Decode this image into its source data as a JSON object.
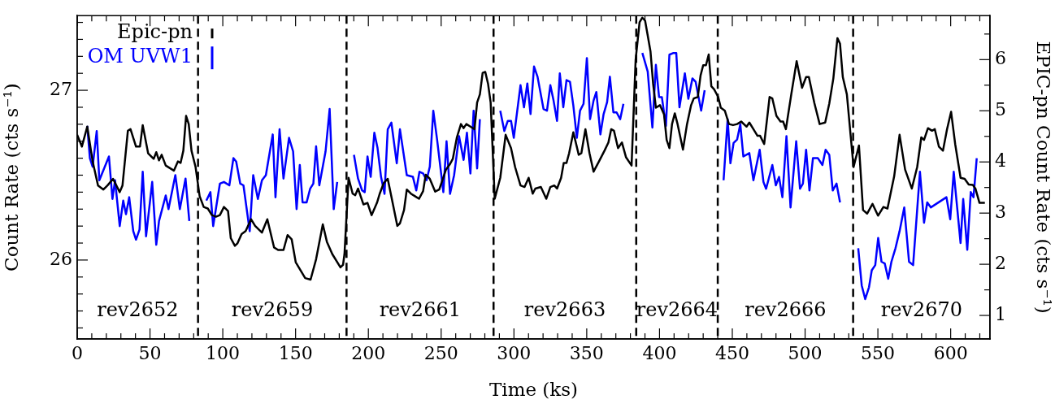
{
  "chart_data": {
    "type": "line",
    "xlabel": "Time (ks)",
    "ylabel": "Count Rate (cts s⁻¹)",
    "y2label": "EPIC-pn Count Rate (cts s⁻¹)",
    "xlim": [
      0,
      627
    ],
    "ylim": [
      25.535,
      27.44
    ],
    "y2lim": [
      0.54,
      6.86
    ],
    "xticks": [
      0,
      {
        "value": 10,
        "label": null
      },
      {
        "value": 20,
        "label": null
      },
      {
        "value": 30,
        "label": null
      },
      {
        "value": 40,
        "label": null
      },
      50,
      {
        "value": 60,
        "label": null
      },
      {
        "value": 70,
        "label": null
      },
      {
        "value": 80,
        "label": null
      },
      {
        "value": 90,
        "label": null
      },
      100,
      {
        "value": 110,
        "label": null
      },
      {
        "value": 120,
        "label": null
      },
      {
        "value": 130,
        "label": null
      },
      {
        "value": 140,
        "label": null
      },
      150,
      {
        "value": 160,
        "label": null
      },
      {
        "value": 170,
        "label": null
      },
      {
        "value": 180,
        "label": null
      },
      {
        "value": 190,
        "label": null
      },
      200,
      {
        "value": 210,
        "label": null
      },
      {
        "value": 220,
        "label": null
      },
      {
        "value": 230,
        "label": null
      },
      {
        "value": 240,
        "label": null
      },
      250,
      {
        "value": 260,
        "label": null
      },
      {
        "value": 270,
        "label": null
      },
      {
        "value": 280,
        "label": null
      },
      {
        "value": 290,
        "label": null
      },
      300,
      {
        "value": 310,
        "label": null
      },
      {
        "value": 320,
        "label": null
      },
      {
        "value": 330,
        "label": null
      },
      {
        "value": 340,
        "label": null
      },
      350,
      {
        "value": 360,
        "label": null
      },
      {
        "value": 370,
        "label": null
      },
      {
        "value": 380,
        "label": null
      },
      {
        "value": 390,
        "label": null
      },
      400,
      {
        "value": 410,
        "label": null
      },
      {
        "value": 420,
        "label": null
      },
      {
        "value": 430,
        "label": null
      },
      {
        "value": 440,
        "label": null
      },
      450,
      {
        "value": 460,
        "label": null
      },
      {
        "value": 470,
        "label": null
      },
      {
        "value": 480,
        "label": null
      },
      {
        "value": 490,
        "label": null
      },
      500,
      {
        "value": 510,
        "label": null
      },
      {
        "value": 520,
        "label": null
      },
      {
        "value": 530,
        "label": null
      },
      {
        "value": 540,
        "label": null
      },
      550,
      {
        "value": 560,
        "label": null
      },
      {
        "value": 570,
        "label": null
      },
      {
        "value": 580,
        "label": null
      },
      {
        "value": 590,
        "label": null
      },
      600,
      {
        "value": 610,
        "label": null
      },
      {
        "value": 620,
        "label": null
      }
    ],
    "yticks": [
      {
        "value": 25.6,
        "label": null
      },
      {
        "value": 25.7,
        "label": null
      },
      {
        "value": 25.8,
        "label": null
      },
      {
        "value": 25.9,
        "label": null
      },
      26,
      {
        "value": 26.1,
        "label": null
      },
      {
        "value": 26.2,
        "label": null
      },
      {
        "value": 26.3,
        "label": null
      },
      {
        "value": 26.4,
        "label": null
      },
      {
        "value": 26.5,
        "label": null
      },
      {
        "value": 26.6,
        "label": null
      },
      {
        "value": 26.7,
        "label": null
      },
      {
        "value": 26.8,
        "label": null
      },
      {
        "value": 26.9,
        "label": null
      },
      27,
      {
        "value": 27.1,
        "label": null
      },
      {
        "value": 27.2,
        "label": null
      },
      {
        "value": 27.3,
        "label": null
      },
      {
        "value": 27.4,
        "label": null
      }
    ],
    "y2ticks": [
      1,
      {
        "value": 1.5,
        "label": null
      },
      2,
      {
        "value": 2.5,
        "label": null
      },
      3,
      {
        "value": 3.5,
        "label": null
      },
      4,
      {
        "value": 4.5,
        "label": null
      },
      5,
      {
        "value": 5.5,
        "label": null
      },
      6,
      {
        "value": 6.5,
        "label": null
      }
    ],
    "grid": false,
    "legend": "top left",
    "ref_lines": [
      {
        "axis": "x",
        "value": 83,
        "color": "#000000",
        "line_style": "dashed"
      },
      {
        "axis": "x",
        "value": 185,
        "color": "#000000",
        "line_style": "dashed"
      },
      {
        "axis": "x",
        "value": 286,
        "color": "#000000",
        "line_style": "dashed"
      },
      {
        "axis": "x",
        "value": 384,
        "color": "#000000",
        "line_style": "dashed"
      },
      {
        "axis": "x",
        "value": 440,
        "color": "#000000",
        "line_style": "dashed"
      },
      {
        "axis": "x",
        "value": 533,
        "color": "#000000",
        "line_style": "dashed"
      }
    ],
    "annotations": [
      "rev2652",
      "rev2659",
      "rev2661",
      "rev2663",
      "rev2664",
      "rev2666",
      "rev2670"
    ],
    "series": [
      {
        "name": "Epic-pn",
        "color": "#000000",
        "axis": "y2",
        "x": [
          0,
          3.2,
          6.9,
          10.6,
          14.3,
          18.0,
          20.8,
          24.6,
          29.2,
          31.1,
          34.8,
          36.6,
          40.4,
          43.1,
          45.0,
          48.7,
          52.5,
          54.3,
          56.2,
          58.0,
          60.8,
          66.4,
          69.2,
          71.0,
          72.9,
          74.8,
          76.6,
          78.5,
          81.3,
          84.1,
          86.9,
          89.7,
          92.5,
          95.3,
          98.0,
          100.8,
          103.6,
          105.5,
          108.3,
          110.1,
          112.9,
          115.7,
          119.4,
          122.2,
          126.9,
          130.6,
          135.2,
          138.0,
          141.7,
          144.5,
          147.3,
          150.1,
          156.6,
          160.3,
          164.1,
          168.7,
          171.5,
          175.2,
          180.8,
          182.6,
          183.6,
          186.4,
          189.2,
          191.0,
          192.9,
          196.6,
          199.4,
          202.2,
          205.9,
          207.8,
          210.6,
          213.3,
          216.1,
          219.9,
          221.7,
          224.5,
          226.4,
          229.2,
          232.0,
          234.8,
          237.6,
          239.4,
          242.2,
          245.9,
          248.7,
          253.3,
          256.1,
          258.0,
          260.8,
          263.6,
          265.4,
          267.3,
          270.1,
          272.9,
          274.7,
          276.6,
          278.5,
          280.3,
          282.2,
          284.0,
          286.8,
          290.6,
          294.3,
          298.0,
          300.8,
          304.5,
          307.3,
          310.1,
          312.9,
          314.7,
          318.5,
          322.2,
          325.0,
          327.7,
          329.6,
          332.4,
          334.2,
          336.1,
          337.9,
          340.8,
          344.5,
          346.3,
          349.1,
          351.9,
          354.7,
          358.4,
          362.2,
          364.9,
          366.8,
          368.7,
          371.5,
          374.2,
          377.0,
          380.8,
          383.6,
          386.3,
          388.2,
          390.1,
          391.9,
          393.8,
          395.6,
          397.5,
          400.3,
          403.1,
          404.9,
          406.8,
          408.6,
          410.5,
          412.4,
          416.1,
          418.9,
          421.7,
          423.5,
          426.3,
          428.2,
          430.0,
          431.9,
          433.8,
          435.6,
          437.5,
          440.3,
          442.1,
          444.9,
          447.7,
          450.5,
          453.3,
          456.1,
          459.8,
          461.7,
          464.5,
          467.3,
          469.1,
          471.9,
          475.6,
          477.5,
          480.3,
          483.1,
          484.9,
          486.8,
          490.5,
          494.2,
          497.9,
          500.7,
          502.6,
          506.3,
          510.0,
          513.8,
          516.6,
          519.4,
          522.2,
          524.0,
          525.9,
          528.7,
          531.4,
          533.3,
          537.0,
          539.8,
          542.6,
          546.3,
          550.1,
          553.8,
          556.6,
          561.2,
          564.9,
          568.7,
          573.3,
          577.0,
          579.8,
          581.7,
          584.4,
          587.2,
          589.1,
          591.9,
          594.7,
          597.5,
          600.3,
          603.1,
          606.8,
          609.6,
          612.4,
          615.2,
          617.0,
          619.8,
          623.5
        ],
        "values": [
          4.53,
          4.3,
          4.69,
          4.01,
          3.54,
          3.46,
          3.54,
          3.67,
          3.41,
          3.54,
          4.61,
          4.64,
          4.3,
          4.3,
          4.72,
          4.17,
          4.06,
          4.19,
          4.03,
          4.14,
          3.93,
          3.83,
          4.01,
          3.98,
          4.22,
          4.9,
          4.74,
          4.22,
          3.9,
          3.33,
          3.12,
          3.09,
          2.96,
          2.93,
          2.96,
          3.12,
          3.04,
          2.51,
          2.36,
          2.41,
          2.59,
          2.65,
          2.88,
          2.75,
          2.62,
          2.88,
          2.33,
          2.28,
          2.28,
          2.57,
          2.49,
          2.04,
          1.73,
          1.7,
          2.1,
          2.78,
          2.44,
          2.2,
          1.94,
          1.99,
          2.2,
          3.69,
          3.38,
          3.35,
          3.48,
          3.17,
          3.2,
          2.96,
          3.2,
          3.38,
          3.59,
          3.67,
          3.28,
          2.75,
          2.8,
          3.06,
          3.46,
          3.38,
          3.33,
          3.28,
          3.43,
          3.75,
          3.67,
          3.42,
          3.46,
          3.85,
          3.96,
          4.06,
          4.48,
          4.74,
          4.66,
          4.74,
          4.69,
          4.64,
          5.16,
          5.32,
          5.74,
          5.76,
          5.53,
          5.16,
          3.28,
          3.69,
          4.53,
          4.27,
          3.9,
          3.54,
          3.51,
          3.69,
          3.38,
          3.48,
          3.51,
          3.28,
          3.51,
          3.54,
          3.48,
          3.69,
          3.98,
          3.98,
          4.17,
          4.58,
          4.14,
          4.17,
          4.64,
          4.17,
          3.81,
          4.01,
          4.22,
          4.38,
          4.64,
          4.61,
          4.27,
          4.38,
          4.09,
          3.93,
          6.0,
          6.73,
          6.82,
          6.76,
          6.47,
          6.16,
          5.53,
          5.06,
          5.11,
          4.93,
          4.43,
          4.27,
          4.74,
          4.95,
          4.74,
          4.24,
          4.74,
          5.11,
          5.24,
          5.27,
          5.69,
          5.89,
          5.89,
          6.1,
          5.48,
          5.42,
          5.27,
          5.06,
          5.0,
          4.74,
          4.72,
          4.74,
          4.79,
          4.69,
          4.77,
          4.64,
          4.51,
          4.51,
          4.35,
          5.27,
          5.24,
          4.9,
          4.79,
          4.79,
          4.64,
          5.32,
          5.97,
          5.45,
          5.66,
          5.66,
          5.16,
          4.74,
          4.77,
          5.14,
          5.63,
          6.42,
          6.31,
          5.66,
          5.32,
          4.48,
          3.9,
          4.32,
          3.06,
          2.99,
          3.18,
          2.95,
          3.12,
          3.09,
          3.72,
          4.53,
          3.85,
          3.48,
          3.9,
          4.48,
          4.43,
          4.66,
          4.61,
          4.64,
          4.3,
          4.22,
          4.64,
          4.98,
          4.35,
          3.69,
          3.67,
          3.56,
          3.55,
          3.48,
          3.2,
          3.2
        ]
      },
      {
        "name": "OM UVW1",
        "color": "#0000ff",
        "x": [
          6.9,
          8.7,
          10.6,
          13.4,
          15.2,
          21.8,
          24.2,
          26.0,
          29.2,
          31.6,
          33.5,
          35.7,
          38.5,
          40.4,
          42.8,
          45.0,
          47.3,
          51.5,
          54.3,
          56.2,
          60.8,
          62.7,
          67.4,
          70.5,
          74.4,
          77.0,
          83,
          88.7,
          91.5,
          93.4,
          98.0,
          100.8,
          104.5,
          107.3,
          109.2,
          112.0,
          114.2,
          118.5,
          120.9,
          124.1,
          126.9,
          129.6,
          134.3,
          136.2,
          139.0,
          141.7,
          145.5,
          148.3,
          150.7,
          152.9,
          154.8,
          157.6,
          160.0,
          162.2,
          164.1,
          166.3,
          170.6,
          173.4,
          176.2,
          178.6,
          185,
          190.1,
          192.9,
          195.7,
          197.5,
          199.4,
          201.6,
          204.1,
          206.3,
          208.7,
          211.1,
          213.3,
          215.8,
          219.5,
          221.7,
          226.4,
          230.6,
          232.9,
          235.1,
          237.6,
          240.0,
          242.2,
          244.6,
          247.2,
          251.5,
          253.7,
          256.1,
          258.9,
          262.3,
          265.4,
          267.7,
          270.1,
          272.3,
          274.7,
          276.6,
          286,
          290.6,
          293.4,
          295.8,
          298.0,
          299.9,
          304.5,
          306.9,
          309.2,
          311.4,
          313.8,
          316.2,
          320.3,
          322.7,
          325.0,
          327.2,
          329.6,
          331.5,
          333.9,
          336.1,
          338.5,
          340.8,
          343.2,
          345.4,
          347.8,
          350.1,
          352.3,
          354.7,
          356.6,
          359.4,
          361.6,
          364.0,
          365.9,
          368.3,
          370.5,
          373.0,
          375.2,
          384,
          388.2,
          391.9,
          395.1,
          397.5,
          399.7,
          401.6,
          404.4,
          406.8,
          409.6,
          411.5,
          413.7,
          417.4,
          419.8,
          422.6,
          424.8,
          428.6,
          431.0,
          440,
          444.0,
          446.8,
          448.7,
          450.9,
          453.3,
          455.5,
          457.6,
          461.7,
          464.5,
          468.8,
          471.4,
          473.2,
          477.5,
          479.9,
          482.1,
          484.4,
          487.2,
          490.0,
          493.9,
          496.5,
          498.5,
          500.7,
          503.0,
          505.4,
          508.8,
          511.9,
          514.1,
          516.6,
          519.0,
          521.6,
          524.0,
          533,
          536.5,
          538.9,
          541.3,
          543.9,
          545.8,
          548.2,
          550.2,
          552.5,
          554.7,
          557.1,
          559.3,
          562.1,
          564.9,
          568.1,
          571.4,
          574.2,
          578.9,
          581.7,
          583.9,
          586.4,
          597.1,
          599.7,
          602.1,
          606.8,
          608.6,
          611.4,
          613.8,
          615.7,
          617.9
        ],
        "values": [
          26.79,
          26.6,
          26.55,
          26.76,
          26.47,
          26.61,
          26.36,
          26.47,
          26.2,
          26.35,
          26.27,
          26.37,
          26.17,
          26.12,
          26.18,
          26.52,
          26.14,
          26.46,
          26.09,
          26.23,
          26.38,
          26.3,
          26.5,
          26.3,
          26.48,
          26.23,
          null,
          26.35,
          26.4,
          26.2,
          26.45,
          26.46,
          26.44,
          26.6,
          26.58,
          26.45,
          26.44,
          26.17,
          26.5,
          26.36,
          26.47,
          26.5,
          26.74,
          26.37,
          26.77,
          26.48,
          26.72,
          26.64,
          26.3,
          26.56,
          26.34,
          26.34,
          26.42,
          26.45,
          26.67,
          26.44,
          26.64,
          26.89,
          26.3,
          26.46,
          null,
          26.62,
          26.48,
          26.41,
          26.4,
          26.61,
          26.49,
          26.75,
          26.66,
          26.49,
          26.39,
          26.77,
          26.81,
          26.57,
          26.77,
          26.5,
          26.49,
          26.41,
          26.52,
          26.51,
          26.47,
          26.55,
          26.88,
          26.71,
          26.4,
          26.7,
          26.39,
          26.5,
          26.73,
          26.59,
          26.75,
          26.51,
          26.88,
          26.54,
          26.83,
          null,
          26.88,
          26.76,
          26.82,
          26.82,
          26.72,
          27.03,
          26.9,
          27.04,
          26.86,
          27.14,
          27.08,
          26.89,
          26.88,
          27.03,
          26.94,
          26.82,
          27.1,
          26.9,
          27.06,
          27.05,
          26.91,
          26.72,
          26.88,
          26.92,
          27.19,
          26.83,
          26.94,
          26.99,
          26.74,
          26.86,
          26.93,
          27.08,
          26.87,
          26.87,
          26.83,
          26.92,
          null,
          27.22,
          27.11,
          26.78,
          27.15,
          26.96,
          26.96,
          26.79,
          27.21,
          27.22,
          27.22,
          26.9,
          27.1,
          26.95,
          27.07,
          27.05,
          26.88,
          27.0,
          null,
          26.47,
          26.83,
          26.57,
          26.69,
          26.71,
          26.8,
          26.61,
          26.63,
          26.47,
          26.65,
          26.46,
          26.42,
          26.56,
          26.44,
          26.49,
          26.37,
          26.73,
          26.31,
          26.7,
          26.42,
          26.45,
          26.65,
          26.41,
          26.6,
          26.6,
          26.56,
          26.65,
          26.62,
          26.41,
          26.45,
          26.34,
          null,
          26.07,
          25.85,
          25.77,
          25.84,
          25.94,
          25.97,
          26.13,
          25.99,
          25.98,
          25.89,
          25.99,
          26.07,
          26.17,
          26.31,
          25.99,
          25.97,
          26.52,
          26.22,
          26.34,
          26.31,
          26.37,
          26.24,
          26.52,
          26.1,
          26.36,
          26.06,
          26.4,
          26.37,
          26.6
        ]
      }
    ]
  }
}
